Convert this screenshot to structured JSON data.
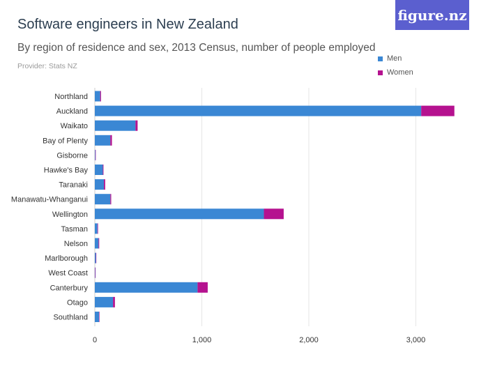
{
  "brand": {
    "logo_text": "figure.nz"
  },
  "chart_data": {
    "type": "bar",
    "orientation": "horizontal",
    "stacked": true,
    "title": "Software engineers in New Zealand",
    "subtitle": "By region of residence and sex, 2013 Census, number of people employed",
    "provider": "Provider: Stats NZ",
    "categories": [
      "Northland",
      "Auckland",
      "Waikato",
      "Bay of Plenty",
      "Gisborne",
      "Hawke's Bay",
      "Taranaki",
      "Manawatu-Whanganui",
      "Wellington",
      "Tasman",
      "Nelson",
      "Marlborough",
      "West Coast",
      "Canterbury",
      "Otago",
      "Southland"
    ],
    "series": [
      {
        "name": "Men",
        "color": "#3a87d4",
        "values": [
          50,
          3050,
          380,
          145,
          5,
          75,
          85,
          145,
          1580,
          25,
          35,
          10,
          3,
          960,
          170,
          40
        ]
      },
      {
        "name": "Women",
        "color": "#b5128f",
        "values": [
          8,
          310,
          20,
          15,
          1,
          6,
          12,
          8,
          185,
          5,
          6,
          2,
          1,
          95,
          18,
          4
        ]
      }
    ],
    "xlim": [
      0,
      3400
    ],
    "xticks": [
      0,
      1000,
      2000,
      3000
    ],
    "xtick_labels": [
      "0",
      "1,000",
      "2,000",
      "3,000"
    ],
    "grid": true,
    "legend_position": "top-right"
  }
}
